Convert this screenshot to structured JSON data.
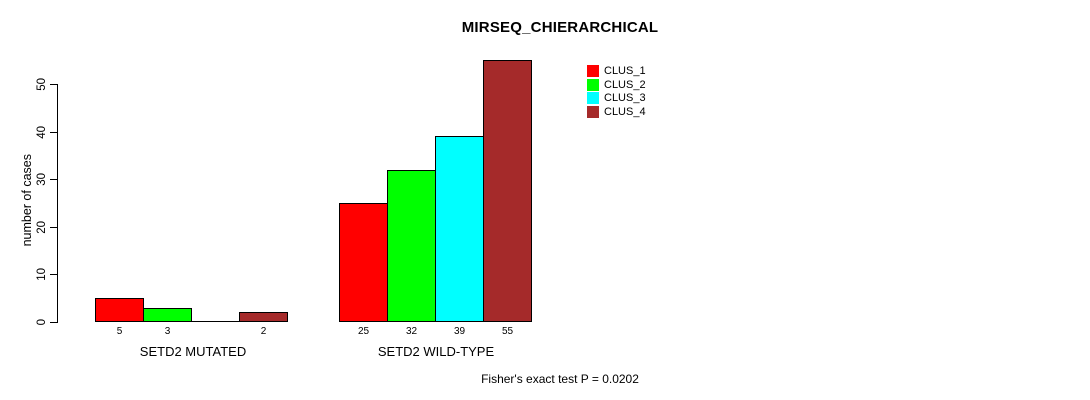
{
  "title": "MIRSEQ_CHIERARCHICAL",
  "footer": "Fisher's exact test P = 0.0202",
  "chart_data": {
    "type": "bar",
    "title": "MIRSEQ_CHIERARCHICAL",
    "xlabel": "",
    "ylabel": "number of cases",
    "ylim": [
      0,
      55
    ],
    "y_ticks": [
      0,
      10,
      20,
      30,
      40,
      50
    ],
    "grid": false,
    "legend_position": "top-right",
    "categories": [
      "SETD2 MUTATED",
      "SETD2 WILD-TYPE"
    ],
    "series": [
      {
        "name": "CLUS_1",
        "color": "#FF0000",
        "values": [
          5,
          25
        ]
      },
      {
        "name": "CLUS_2",
        "color": "#00FF00",
        "values": [
          3,
          32
        ]
      },
      {
        "name": "CLUS_3",
        "color": "#00FFFF",
        "values": [
          0,
          39
        ]
      },
      {
        "name": "CLUS_4",
        "color": "#A52A2A",
        "values": [
          2,
          55
        ]
      }
    ],
    "bar_labels": [
      [
        "5",
        "3",
        "",
        "2"
      ],
      [
        "25",
        "32",
        "39",
        "55"
      ]
    ],
    "annotation": "Fisher's exact test P = 0.0202"
  }
}
